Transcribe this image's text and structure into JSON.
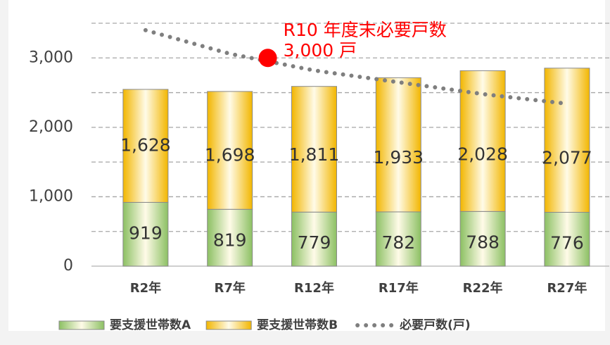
{
  "chart_data": {
    "type": "bar",
    "categories": [
      "R2年",
      "R7年",
      "R12年",
      "R17年",
      "R22年",
      "R27年"
    ],
    "series": [
      {
        "name": "要支援世帯数A",
        "color": "#8cc063",
        "values": [
          919,
          819,
          779,
          782,
          788,
          776
        ],
        "value_labels": [
          "919",
          "819",
          "779",
          "782",
          "788",
          "776"
        ]
      },
      {
        "name": "要支援世帯数B",
        "color": "#f2b600",
        "values": [
          1628,
          1698,
          1811,
          1933,
          2028,
          2077
        ],
        "value_labels": [
          "1,628",
          "1,698",
          "1,811",
          "1,933",
          "2,028",
          "2,077"
        ]
      },
      {
        "name": "必要戸数(戸)",
        "type": "line",
        "color": "#7f7f7f",
        "values": [
          3400,
          3060,
          2820,
          2650,
          2480,
          2340
        ]
      }
    ],
    "annotation": {
      "text": "R10 年度末必要戸数",
      "label": "3,000 戸",
      "value": 3000,
      "color": "#ff0000"
    },
    "ylim": [
      0,
      3500
    ],
    "yticks": [
      0,
      {
        "value": 1000,
        "label": "1,000"
      },
      {
        "value": 2000,
        "label": "2,000"
      },
      {
        "value": 3000,
        "label": "3,000"
      }
    ],
    "grid_lines": [
      500,
      1500,
      2500,
      3500
    ],
    "grid": true,
    "legend": "bottom"
  }
}
